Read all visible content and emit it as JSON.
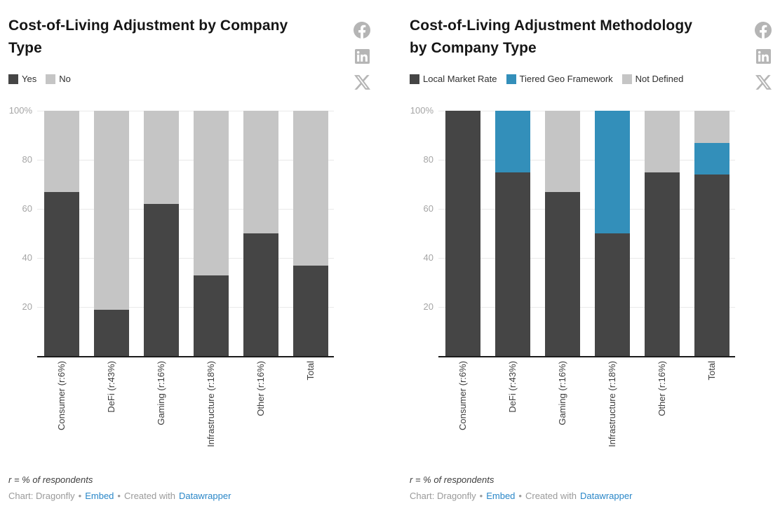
{
  "page": {
    "background": "#ffffff"
  },
  "share": {
    "icon_color": "#b5b5b5",
    "icons": [
      {
        "name": "facebook-icon",
        "shape": "f-letter-in-circle"
      },
      {
        "name": "linkedin-icon",
        "shape": "in-letters-in-rounded-square"
      },
      {
        "name": "x-icon",
        "shape": "x-logo"
      }
    ]
  },
  "footer": {
    "footnote": "r = % of respondents",
    "credit_prefix": "Chart: Dragonfly",
    "separator": "•",
    "embed_link": "Embed",
    "created_with": "Created with",
    "datawrapper_link": "Datawrapper",
    "link_color": "#2a87c8"
  },
  "chart_data": [
    {
      "type": "bar",
      "stacked": true,
      "percent": true,
      "title": "Cost-of-Living Adjustment by Company Type",
      "title_lines": [
        "Cost-of-Living Adjustment by Company",
        "Type"
      ],
      "categories": [
        "Consumer (r:6%)",
        "DeFi (r:43%)",
        "Gaming (r:16%)",
        "Infrastructure (r:18%)",
        "Other (r:16%)",
        "Total"
      ],
      "series": [
        {
          "name": "Yes",
          "color": "#454545",
          "values": [
            67,
            19,
            62,
            33,
            50,
            37
          ]
        },
        {
          "name": "No",
          "color": "#c5c5c5",
          "values": [
            33,
            81,
            38,
            67,
            50,
            63
          ]
        }
      ],
      "xlabel": "",
      "ylabel": "",
      "ylim": [
        0,
        100
      ],
      "yticks": [
        {
          "value": 20,
          "label": "20"
        },
        {
          "value": 40,
          "label": "40"
        },
        {
          "value": 60,
          "label": "60"
        },
        {
          "value": 80,
          "label": "80"
        },
        {
          "value": 100,
          "label": "100%"
        }
      ],
      "grid": true,
      "legend_position": "top"
    },
    {
      "type": "bar",
      "stacked": true,
      "percent": true,
      "title": "Cost-of-Living Adjustment Methodology by Company Type",
      "title_lines": [
        "Cost-of-Living Adjustment Methodology",
        "by Company Type"
      ],
      "categories": [
        "Consumer (r:6%)",
        "DeFi (r:43%)",
        "Gaming (r:16%)",
        "Infrastructure (r:18%)",
        "Other (r:16%)",
        "Total"
      ],
      "series": [
        {
          "name": "Local Market Rate",
          "color": "#454545",
          "values": [
            100,
            75,
            67,
            50,
            75,
            74
          ]
        },
        {
          "name": "Tiered Geo Framework",
          "color": "#338fba",
          "values": [
            0,
            25,
            0,
            50,
            0,
            13
          ]
        },
        {
          "name": "Not Defined",
          "color": "#c5c5c5",
          "values": [
            0,
            0,
            33,
            0,
            25,
            13
          ]
        }
      ],
      "xlabel": "",
      "ylabel": "",
      "ylim": [
        0,
        100
      ],
      "yticks": [
        {
          "value": 20,
          "label": "20"
        },
        {
          "value": 40,
          "label": "40"
        },
        {
          "value": 60,
          "label": "60"
        },
        {
          "value": 80,
          "label": "80"
        },
        {
          "value": 100,
          "label": "100%"
        }
      ],
      "grid": true,
      "legend_position": "top"
    }
  ]
}
